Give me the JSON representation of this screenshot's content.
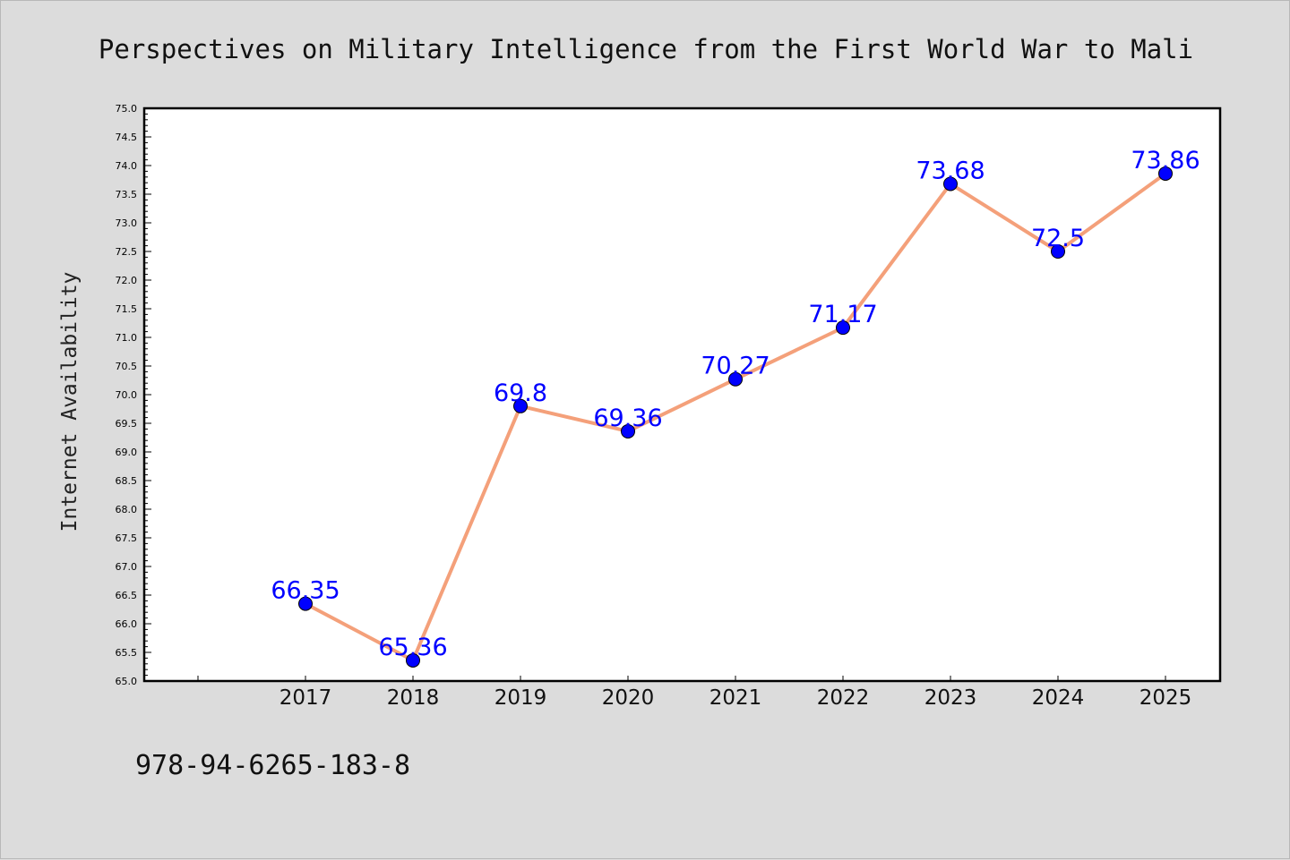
{
  "chart_data": {
    "type": "line",
    "title": "Perspectives on Military Intelligence from the First World War to Mali",
    "xlabel": "",
    "ylabel": "Internet Availability",
    "categories": [
      "2017",
      "2018",
      "2019",
      "2020",
      "2021",
      "2022",
      "2023",
      "2024",
      "2025"
    ],
    "series": [
      {
        "values": [
          66.35,
          65.36,
          69.8,
          69.36,
          70.27,
          71.17,
          73.68,
          72.5,
          73.86
        ],
        "labels": [
          "66.35",
          "65.36",
          "69.8",
          "69.36",
          "70.27",
          "71.17",
          "73.68",
          "72.5",
          "73.86"
        ],
        "line_color": "#f4a07a",
        "marker_color": "#0000ff"
      }
    ],
    "ylim": [
      65.0,
      75.0
    ],
    "ytick_step": 0.5,
    "grid": false,
    "legend": "none"
  },
  "footer": {
    "isbn": "978-94-6265-183-8"
  },
  "colors": {
    "background": "#dcdcdc",
    "plot_background": "#ffffff",
    "axis": "#000000"
  }
}
